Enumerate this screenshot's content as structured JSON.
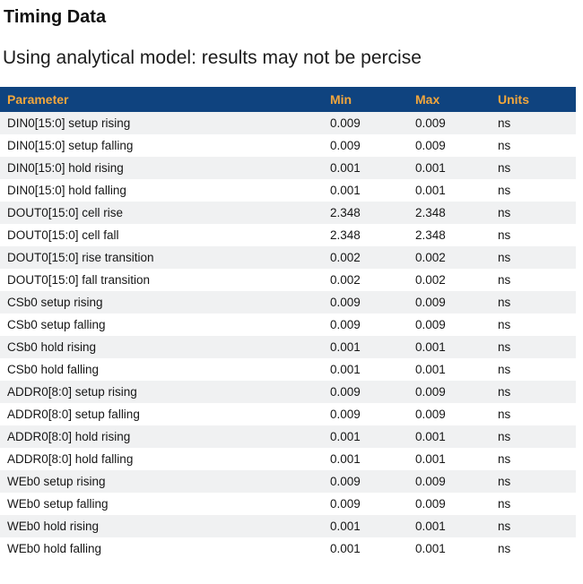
{
  "page": {
    "title": "Timing Data",
    "subtitle": "Using analytical model: results may not be percise"
  },
  "table": {
    "columns": [
      "Parameter",
      "Min",
      "Max",
      "Units"
    ],
    "rows": [
      {
        "parameter": "DIN0[15:0] setup rising",
        "min": "0.009",
        "max": "0.009",
        "units": "ns"
      },
      {
        "parameter": "DIN0[15:0] setup falling",
        "min": "0.009",
        "max": "0.009",
        "units": "ns"
      },
      {
        "parameter": "DIN0[15:0] hold rising",
        "min": "0.001",
        "max": "0.001",
        "units": "ns"
      },
      {
        "parameter": "DIN0[15:0] hold falling",
        "min": "0.001",
        "max": "0.001",
        "units": "ns"
      },
      {
        "parameter": "DOUT0[15:0] cell rise",
        "min": "2.348",
        "max": "2.348",
        "units": "ns"
      },
      {
        "parameter": "DOUT0[15:0] cell fall",
        "min": "2.348",
        "max": "2.348",
        "units": "ns"
      },
      {
        "parameter": "DOUT0[15:0] rise transition",
        "min": "0.002",
        "max": "0.002",
        "units": "ns"
      },
      {
        "parameter": "DOUT0[15:0] fall transition",
        "min": "0.002",
        "max": "0.002",
        "units": "ns"
      },
      {
        "parameter": "CSb0 setup rising",
        "min": "0.009",
        "max": "0.009",
        "units": "ns"
      },
      {
        "parameter": "CSb0 setup falling",
        "min": "0.009",
        "max": "0.009",
        "units": "ns"
      },
      {
        "parameter": "CSb0 hold rising",
        "min": "0.001",
        "max": "0.001",
        "units": "ns"
      },
      {
        "parameter": "CSb0 hold falling",
        "min": "0.001",
        "max": "0.001",
        "units": "ns"
      },
      {
        "parameter": "ADDR0[8:0] setup rising",
        "min": "0.009",
        "max": "0.009",
        "units": "ns"
      },
      {
        "parameter": "ADDR0[8:0] setup falling",
        "min": "0.009",
        "max": "0.009",
        "units": "ns"
      },
      {
        "parameter": "ADDR0[8:0] hold rising",
        "min": "0.001",
        "max": "0.001",
        "units": "ns"
      },
      {
        "parameter": "ADDR0[8:0] hold falling",
        "min": "0.001",
        "max": "0.001",
        "units": "ns"
      },
      {
        "parameter": "WEb0 setup rising",
        "min": "0.009",
        "max": "0.009",
        "units": "ns"
      },
      {
        "parameter": "WEb0 setup falling",
        "min": "0.009",
        "max": "0.009",
        "units": "ns"
      },
      {
        "parameter": "WEb0 hold rising",
        "min": "0.001",
        "max": "0.001",
        "units": "ns"
      },
      {
        "parameter": "WEb0 hold falling",
        "min": "0.001",
        "max": "0.001",
        "units": "ns"
      }
    ]
  },
  "colors": {
    "header_bg": "#0F437F",
    "header_text": "#F2A63C",
    "row_alt_bg": "#F0F1F2",
    "row_bg": "#FFFFFF",
    "text": "#1B1B1B"
  }
}
